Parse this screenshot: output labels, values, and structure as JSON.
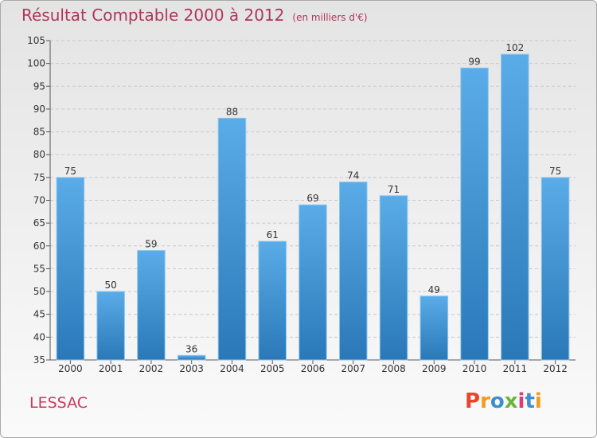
{
  "header": {
    "title": "Résultat Comptable 2000 à 2012",
    "subtitle": "(en milliers d'€)"
  },
  "footer": {
    "city": "LESSAC",
    "logo_letters": [
      "P",
      "r",
      "o",
      "x",
      "i",
      "t",
      "i"
    ],
    "logo_colors": [
      "#e8462a",
      "#f39a1f",
      "#3e8ed0",
      "#6cb33e",
      "#d93b7b",
      "#3e8ed0",
      "#f39a1f"
    ]
  },
  "chart_data": {
    "type": "bar",
    "title": "Résultat Comptable 2000 à 2012",
    "categories": [
      "2000",
      "2001",
      "2002",
      "2003",
      "2004",
      "2005",
      "2006",
      "2007",
      "2008",
      "2009",
      "2010",
      "2011",
      "2012"
    ],
    "values": [
      75,
      50,
      59,
      36,
      88,
      61,
      69,
      74,
      71,
      49,
      99,
      102,
      75
    ],
    "ylim": [
      35,
      105
    ],
    "yticks": [
      35,
      40,
      45,
      50,
      55,
      60,
      65,
      70,
      75,
      80,
      85,
      90,
      95,
      100,
      105
    ],
    "grid": true,
    "bar_color_top": "#5aace8",
    "bar_color_bottom": "#2a78b8"
  }
}
